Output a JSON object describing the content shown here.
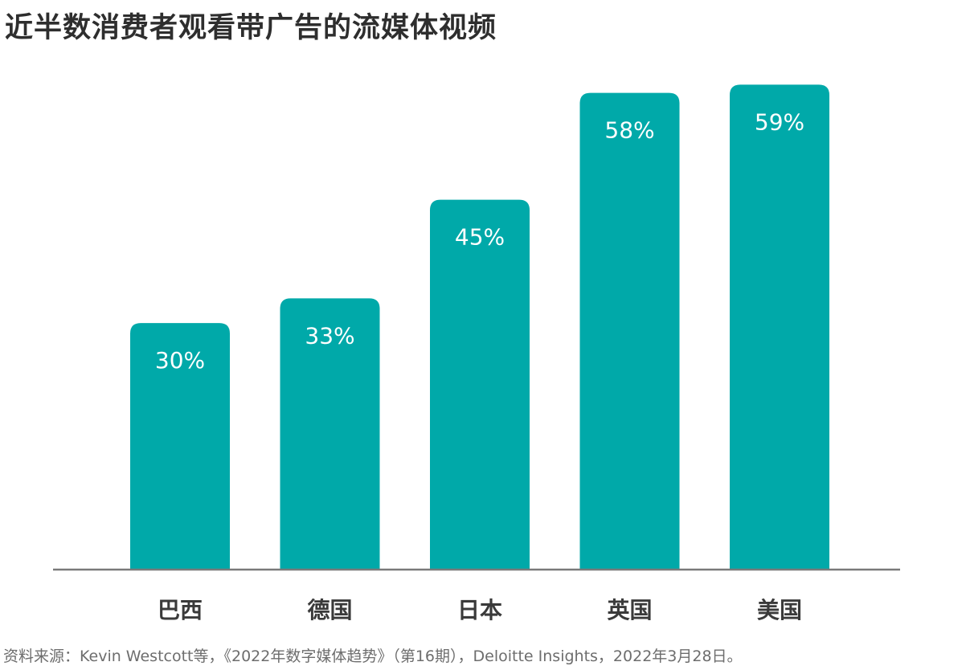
{
  "chart_data": {
    "type": "bar",
    "title": "近半数消费者观看带广告的流媒体视频",
    "categories": [
      "巴西",
      "德国",
      "日本",
      "英国",
      "美国"
    ],
    "values": [
      30,
      33,
      45,
      58,
      59
    ],
    "value_labels": [
      "30%",
      "33%",
      "45%",
      "58%",
      "59%"
    ],
    "unit": "%",
    "ylim": [
      0,
      60
    ],
    "grid": false,
    "legend": "none",
    "bar_color": "#00a9a9",
    "label_color": "#ffffff",
    "axis_color": "#7a7a7a",
    "source": "资料来源：Kevin Westcott等，《2022年数字媒体趋势》（第16期），Deloitte Insights，2022年3月28日。"
  }
}
